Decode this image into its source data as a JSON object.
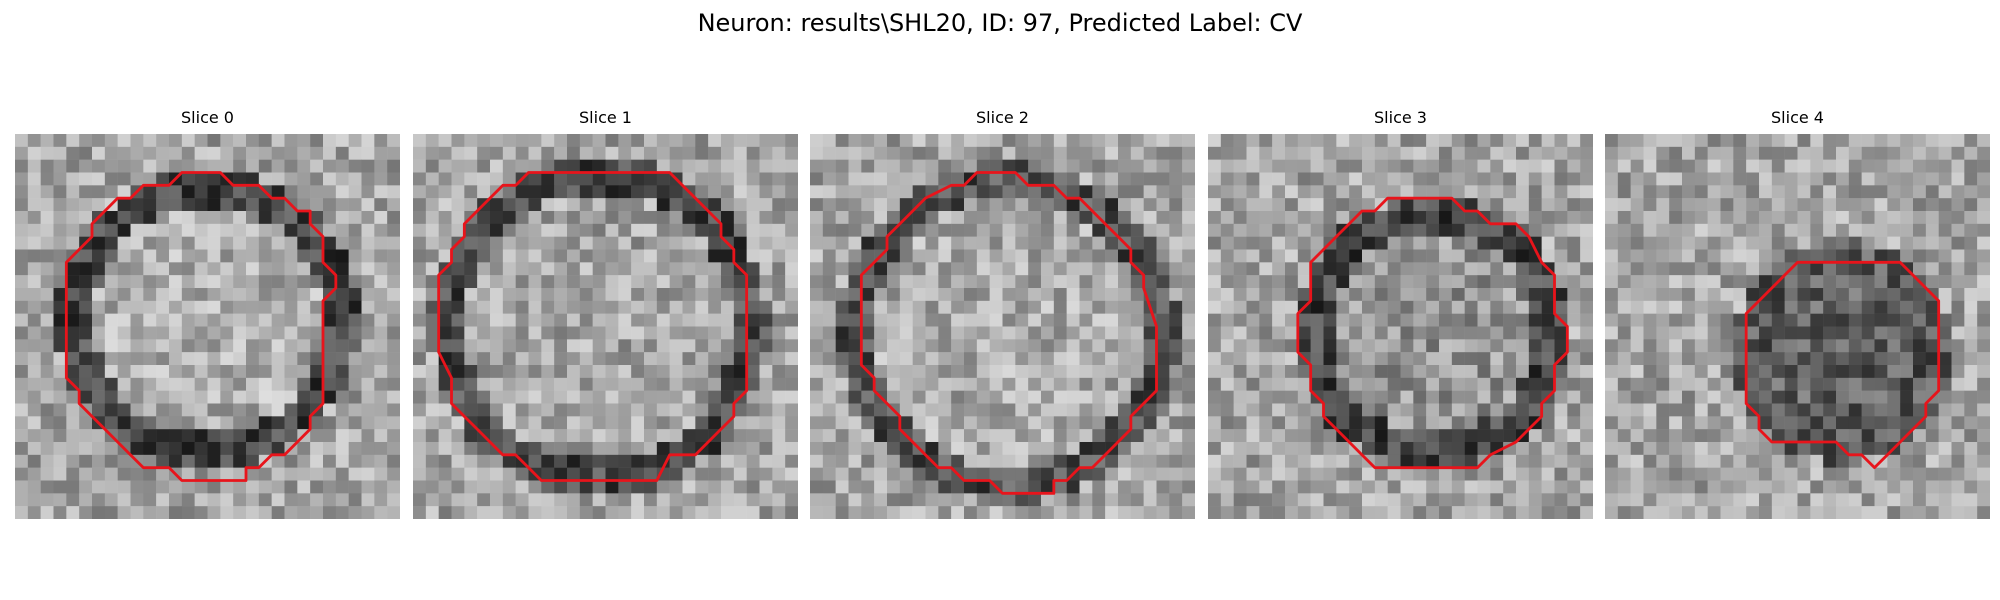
{
  "figure": {
    "title": "Neuron: results\\SHL20, ID: 97, Predicted Label: CV"
  },
  "panels": [
    {
      "title": "Slice 0"
    },
    {
      "title": "Slice 1"
    },
    {
      "title": "Slice 2"
    },
    {
      "title": "Slice 3"
    },
    {
      "title": "Slice 4"
    }
  ],
  "colors": {
    "contour": "#e8141b"
  }
}
